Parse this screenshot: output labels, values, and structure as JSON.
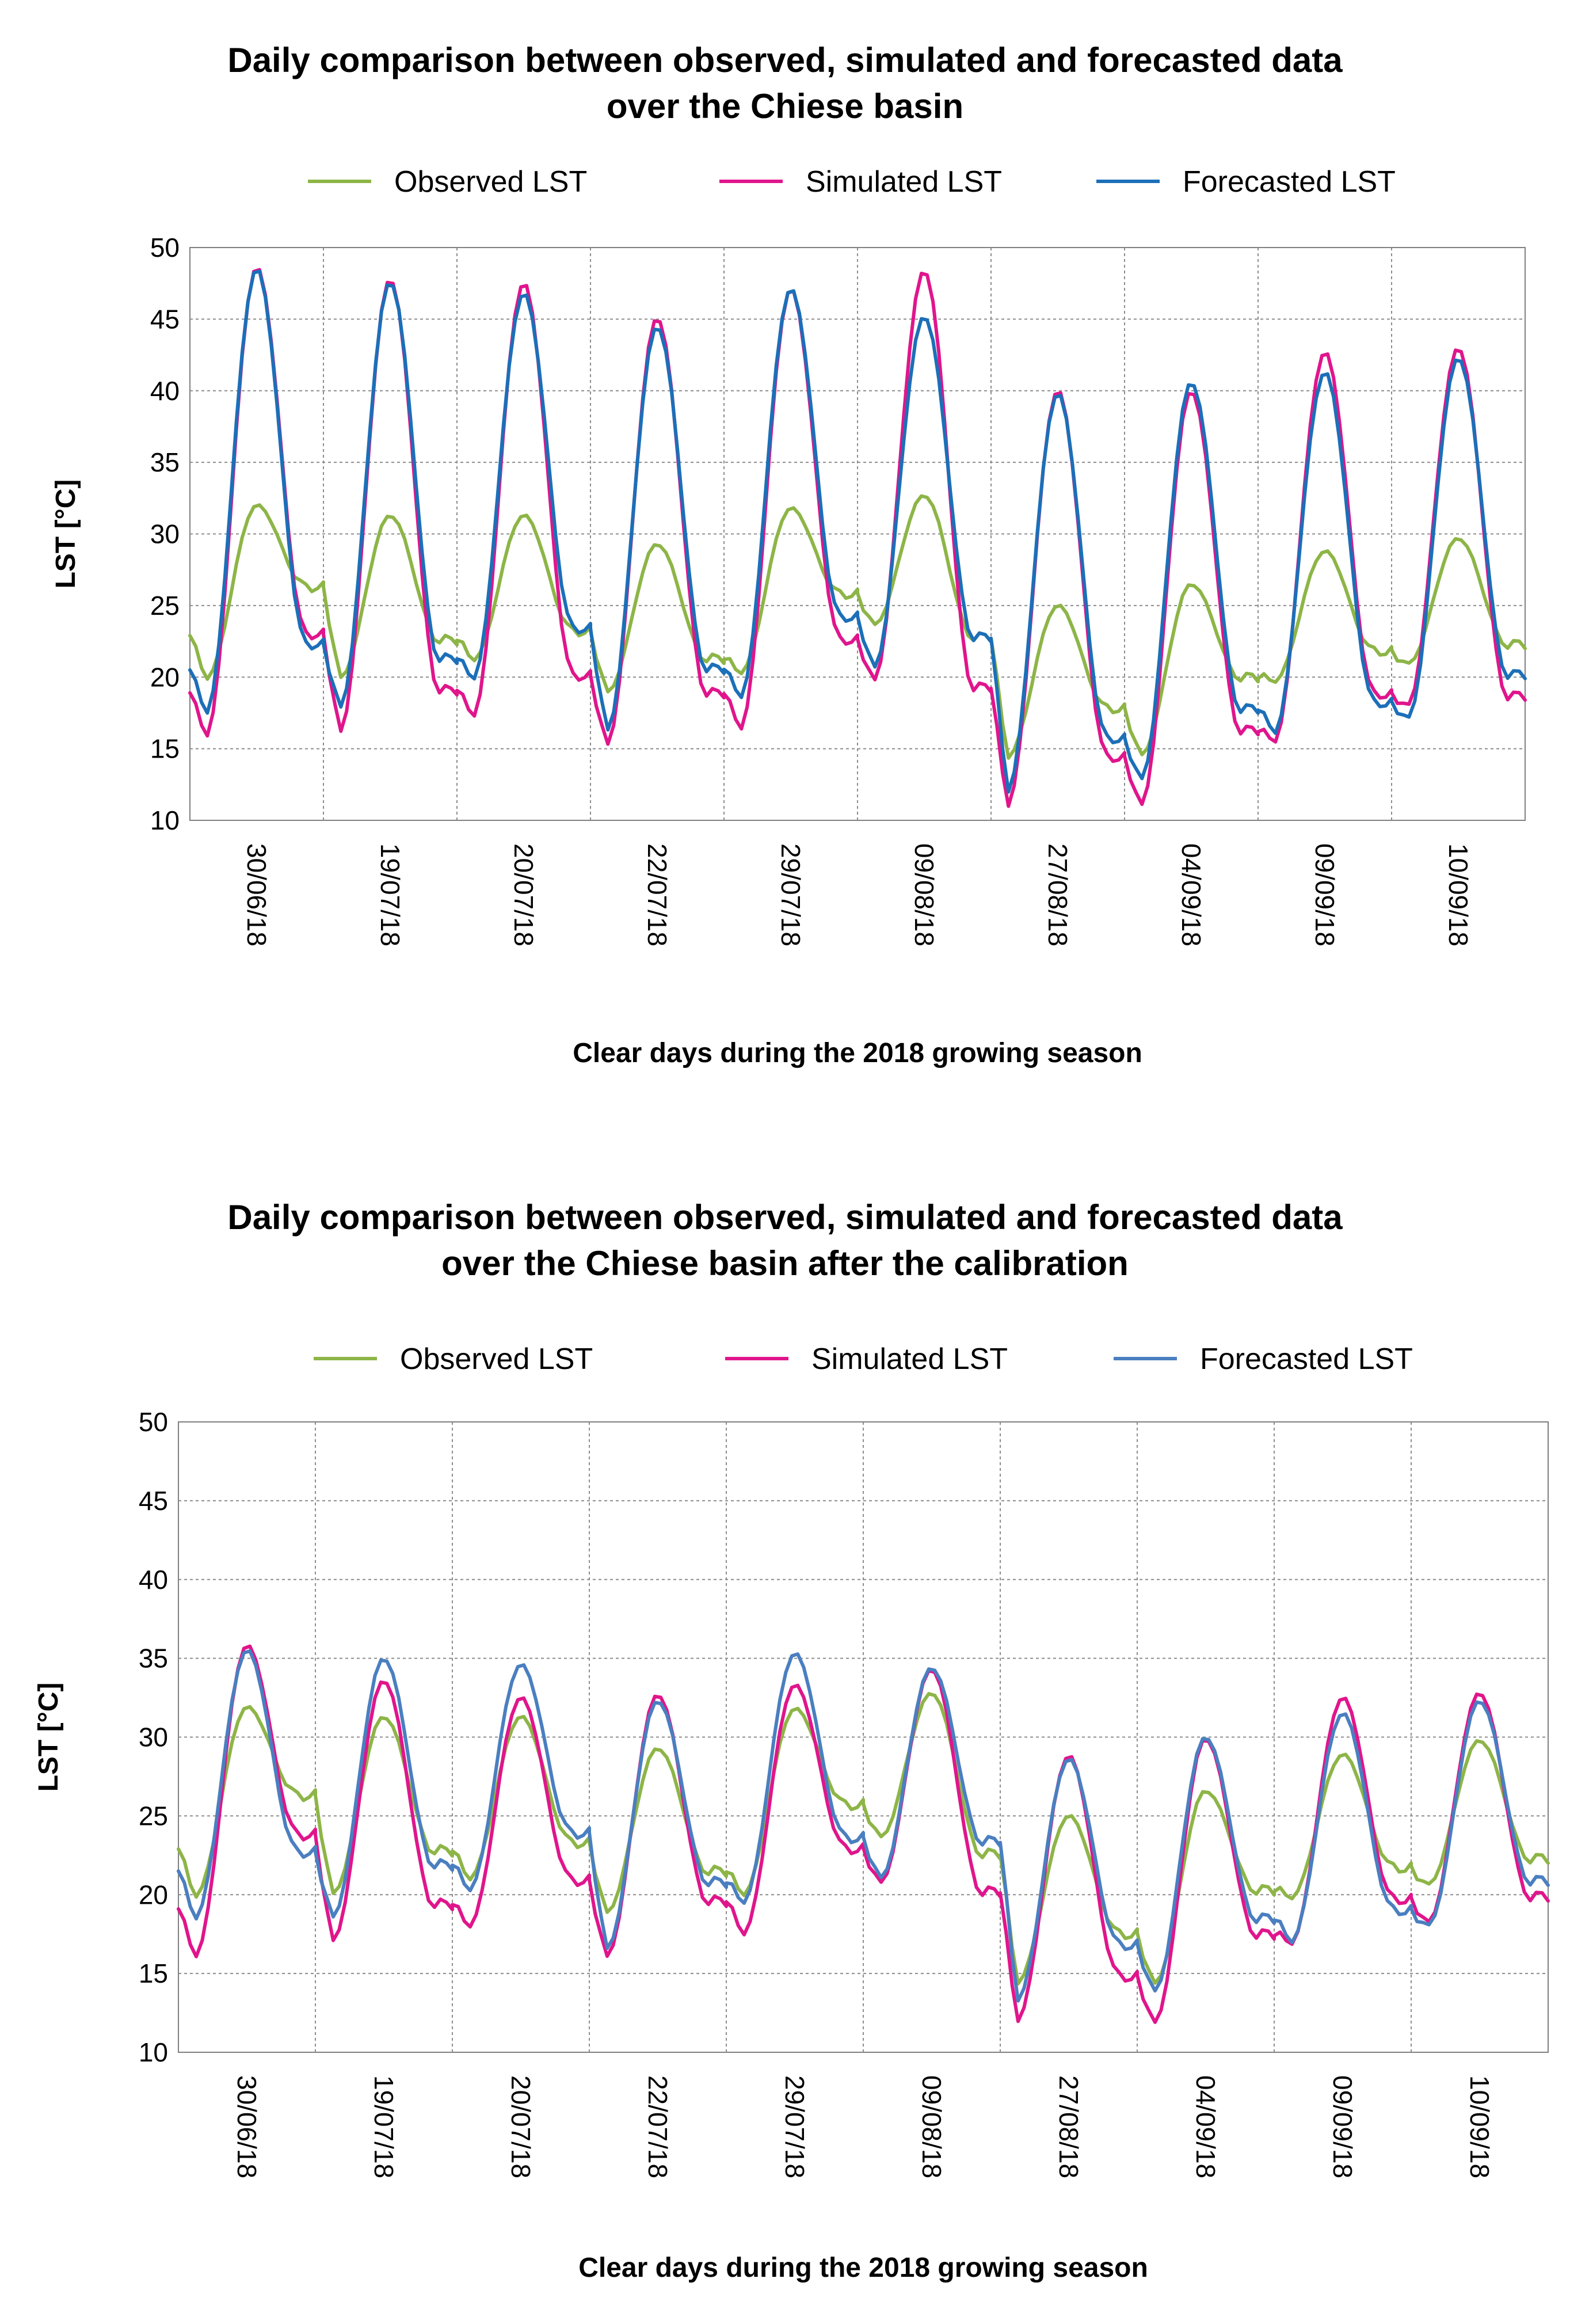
{
  "chart_data": [
    {
      "type": "line",
      "title_line1": "Daily comparison between observed, simulated and forecasted data",
      "title_line2": "over the Chiese basin",
      "xlabel": "Clear days during the 2018 growing season",
      "ylabel": "LST [°C]",
      "ylim": [
        10,
        50
      ],
      "yticks": [
        "10",
        "15",
        "20",
        "25",
        "30",
        "35",
        "40",
        "45",
        "50"
      ],
      "categories": [
        "30/06/18",
        "19/07/18",
        "20/07/18",
        "22/07/18",
        "29/07/18",
        "09/08/18",
        "27/08/18",
        "04/09/18",
        "09/09/18",
        "10/09/18"
      ],
      "grid": true,
      "legend_position": "top",
      "series": [
        {
          "name": "Observed LST",
          "color": "#8db547",
          "daily": [
            {
              "min": 19.9,
              "max": 32.0,
              "end": 26.3
            },
            {
              "min": 19.9,
              "max": 31.3,
              "end": 22.6
            },
            {
              "min": 21.2,
              "max": 31.3,
              "end": 23.2
            },
            {
              "min": 18.9,
              "max": 29.3,
              "end": 21.3
            },
            {
              "min": 20.3,
              "max": 31.8,
              "end": 25.8
            },
            {
              "min": 23.6,
              "max": 32.7,
              "end": 22.8
            },
            {
              "min": 14.4,
              "max": 25.0,
              "end": 17.8
            },
            {
              "min": 14.5,
              "max": 26.5,
              "end": 20.0
            },
            {
              "min": 19.7,
              "max": 28.8,
              "end": 21.8
            },
            {
              "min": 20.9,
              "max": 29.7,
              "end": 22.3
            }
          ]
        },
        {
          "name": "Simulated LST",
          "color": "#e0158c",
          "daily": [
            {
              "min": 15.9,
              "max": 48.6,
              "end": 23.0
            },
            {
              "min": 16.1,
              "max": 47.8,
              "end": 19.1
            },
            {
              "min": 17.3,
              "max": 47.5,
              "end": 20.1
            },
            {
              "min": 15.2,
              "max": 45.1,
              "end": 18.9
            },
            {
              "min": 16.4,
              "max": 47.1,
              "end": 22.6
            },
            {
              "min": 19.7,
              "max": 48.4,
              "end": 19.3
            },
            {
              "min": 11.0,
              "max": 40.0,
              "end": 14.4
            },
            {
              "min": 11.0,
              "max": 40.0,
              "end": 16.3
            },
            {
              "min": 15.5,
              "max": 42.7,
              "end": 18.8
            },
            {
              "min": 18.0,
              "max": 43.0,
              "end": 18.7
            }
          ]
        },
        {
          "name": "Forecasted LST",
          "color": "#1c6fb8",
          "daily": [
            {
              "min": 17.5,
              "max": 48.5,
              "end": 22.3
            },
            {
              "min": 17.8,
              "max": 47.6,
              "end": 21.3
            },
            {
              "min": 19.9,
              "max": 46.8,
              "end": 23.4
            },
            {
              "min": 16.2,
              "max": 44.5,
              "end": 20.6
            },
            {
              "min": 18.6,
              "max": 47.1,
              "end": 24.2
            },
            {
              "min": 20.6,
              "max": 45.2,
              "end": 22.8
            },
            {
              "min": 12.0,
              "max": 39.8,
              "end": 15.7
            },
            {
              "min": 12.8,
              "max": 40.6,
              "end": 17.8
            },
            {
              "min": 16.1,
              "max": 41.3,
              "end": 18.2
            },
            {
              "min": 17.1,
              "max": 42.3,
              "end": 20.2
            }
          ]
        }
      ]
    },
    {
      "type": "line",
      "title_line1": "Daily comparison between observed, simulated and forecasted data",
      "title_line2": "over the Chiese basin after the calibration",
      "xlabel": "Clear days during the 2018 growing season",
      "ylabel": "LST [°C]",
      "ylim": [
        10,
        50
      ],
      "yticks": [
        "10",
        "15",
        "20",
        "25",
        "30",
        "35",
        "40",
        "45",
        "50"
      ],
      "categories": [
        "30/06/18",
        "19/07/18",
        "20/07/18",
        "22/07/18",
        "29/07/18",
        "09/08/18",
        "27/08/18",
        "04/09/18",
        "09/09/18",
        "10/09/18"
      ],
      "grid": true,
      "legend_position": "top",
      "series": [
        {
          "name": "Observed LST",
          "color": "#8db547",
          "daily": [
            {
              "min": 19.9,
              "max": 31.9,
              "end": 26.3
            },
            {
              "min": 20.0,
              "max": 31.3,
              "end": 22.8
            },
            {
              "min": 21.0,
              "max": 31.3,
              "end": 23.3
            },
            {
              "min": 18.8,
              "max": 29.3,
              "end": 21.5
            },
            {
              "min": 20.0,
              "max": 31.8,
              "end": 25.7
            },
            {
              "min": 23.6,
              "max": 32.8,
              "end": 22.6
            },
            {
              "min": 14.4,
              "max": 25.0,
              "end": 17.5
            },
            {
              "min": 14.3,
              "max": 26.6,
              "end": 20.3
            },
            {
              "min": 19.8,
              "max": 28.9,
              "end": 21.7
            },
            {
              "min": 20.6,
              "max": 29.8,
              "end": 22.3
            }
          ]
        },
        {
          "name": "Simulated LST",
          "color": "#e0158c",
          "daily": [
            {
              "min": 16.1,
              "max": 35.8,
              "end": 23.8
            },
            {
              "min": 17.0,
              "max": 33.6,
              "end": 19.4
            },
            {
              "min": 18.0,
              "max": 32.5,
              "end": 20.9
            },
            {
              "min": 16.0,
              "max": 32.7,
              "end": 19.6
            },
            {
              "min": 17.5,
              "max": 33.3,
              "end": 22.9
            },
            {
              "min": 20.7,
              "max": 34.3,
              "end": 20.2
            },
            {
              "min": 12.0,
              "max": 28.8,
              "end": 14.8
            },
            {
              "min": 11.8,
              "max": 29.9,
              "end": 17.5
            },
            {
              "min": 16.9,
              "max": 32.5,
              "end": 19.7
            },
            {
              "min": 18.2,
              "max": 32.8,
              "end": 19.9
            }
          ]
        },
        {
          "name": "Forecasted LST",
          "color": "#4a7fc0",
          "daily": [
            {
              "min": 18.5,
              "max": 35.5,
              "end": 22.7
            },
            {
              "min": 18.5,
              "max": 35.0,
              "end": 21.9
            },
            {
              "min": 20.3,
              "max": 34.6,
              "end": 23.9
            },
            {
              "min": 16.5,
              "max": 32.3,
              "end": 20.8
            },
            {
              "min": 19.5,
              "max": 35.3,
              "end": 23.6
            },
            {
              "min": 21.0,
              "max": 34.4,
              "end": 23.4
            },
            {
              "min": 13.3,
              "max": 28.6,
              "end": 16.8
            },
            {
              "min": 13.8,
              "max": 30.0,
              "end": 18.5
            },
            {
              "min": 17.0,
              "max": 31.5,
              "end": 19.0
            },
            {
              "min": 18.0,
              "max": 32.3,
              "end": 20.9
            }
          ]
        }
      ]
    }
  ]
}
